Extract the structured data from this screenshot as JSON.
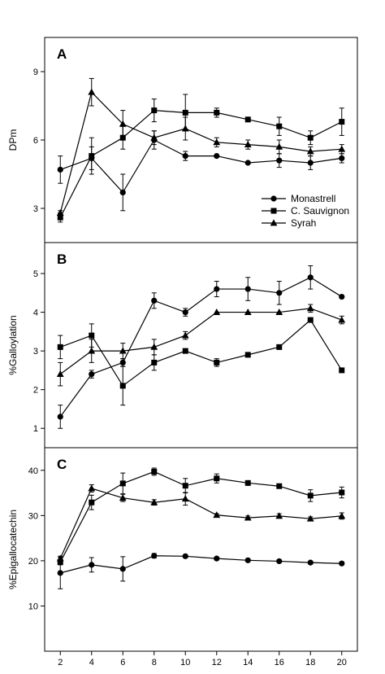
{
  "chart_data": [
    {
      "type": "line",
      "panel_label": "A",
      "ylabel": "DPm",
      "x": [
        2,
        4,
        6,
        8,
        10,
        12,
        14,
        16,
        18,
        20
      ],
      "ylim": [
        1.5,
        10.5
      ],
      "yticks": [
        3,
        6,
        9
      ],
      "legend_position": "bottom-right",
      "series": [
        {
          "name": "Monastrell",
          "marker": "circle",
          "values": [
            4.7,
            5.2,
            3.7,
            6.0,
            5.3,
            5.3,
            5.0,
            5.1,
            5.0,
            5.2
          ],
          "errors": [
            0.6,
            0.5,
            0.8,
            0.4,
            0.2,
            0.0,
            0.0,
            0.3,
            0.3,
            0.2
          ]
        },
        {
          "name": "C. Sauvignon",
          "marker": "square",
          "values": [
            2.6,
            5.3,
            6.1,
            7.3,
            7.2,
            7.2,
            6.9,
            6.6,
            6.1,
            6.8
          ],
          "errors": [
            0.2,
            0.8,
            0.5,
            0.5,
            0.8,
            0.2,
            0.1,
            0.4,
            0.3,
            0.6
          ]
        },
        {
          "name": "Syrah",
          "marker": "triangle",
          "values": [
            2.8,
            8.1,
            6.7,
            6.1,
            6.5,
            5.9,
            5.8,
            5.7,
            5.5,
            5.6
          ],
          "errors": [
            0.1,
            0.6,
            0.6,
            0.3,
            0.5,
            0.2,
            0.2,
            0.3,
            0.2,
            0.2
          ]
        }
      ]
    },
    {
      "type": "line",
      "panel_label": "B",
      "ylabel": "%Galloylation",
      "x": [
        2,
        4,
        6,
        8,
        10,
        12,
        14,
        16,
        18,
        20
      ],
      "ylim": [
        0.5,
        5.8
      ],
      "yticks": [
        1,
        2,
        3,
        4,
        5
      ],
      "series": [
        {
          "name": "Monastrell",
          "marker": "circle",
          "values": [
            1.3,
            2.4,
            2.7,
            4.3,
            4.0,
            4.6,
            4.6,
            4.5,
            4.9,
            4.4
          ],
          "errors": [
            0.3,
            0.1,
            0.1,
            0.2,
            0.1,
            0.2,
            0.3,
            0.3,
            0.3,
            0.0
          ]
        },
        {
          "name": "C. Sauvignon",
          "marker": "square",
          "values": [
            3.1,
            3.4,
            2.1,
            2.7,
            3.0,
            2.7,
            2.9,
            3.1,
            3.8,
            2.5
          ],
          "errors": [
            0.3,
            0.3,
            0.5,
            0.2,
            0.0,
            0.1,
            0.0,
            0.0,
            0.0,
            0.0
          ]
        },
        {
          "name": "Syrah",
          "marker": "triangle",
          "values": [
            2.4,
            3.0,
            3.0,
            3.1,
            3.4,
            4.0,
            4.0,
            4.0,
            4.1,
            3.8
          ],
          "errors": [
            0.3,
            0.3,
            0.2,
            0.2,
            0.1,
            0.0,
            0.0,
            0.0,
            0.1,
            0.1
          ]
        }
      ]
    },
    {
      "type": "line",
      "panel_label": "C",
      "ylabel": "%Epigallocatechin",
      "x": [
        2,
        4,
        6,
        8,
        10,
        12,
        14,
        16,
        18,
        20
      ],
      "ylim": [
        0,
        45
      ],
      "yticks": [
        10,
        20,
        30,
        40
      ],
      "series": [
        {
          "name": "Monastrell",
          "marker": "circle",
          "values": [
            17.3,
            19.1,
            18.2,
            21.1,
            21.0,
            20.5,
            20.1,
            19.9,
            19.6,
            19.4
          ],
          "errors": [
            3.5,
            1.6,
            2.7,
            0.5,
            0.3,
            0.3,
            0.3,
            0.3,
            0.3,
            0.3
          ]
        },
        {
          "name": "C. Sauvignon",
          "marker": "square",
          "values": [
            19.7,
            32.9,
            37.1,
            39.7,
            36.6,
            38.2,
            37.2,
            36.5,
            34.4,
            35.1
          ],
          "errors": [
            0.6,
            1.6,
            2.3,
            0.8,
            1.6,
            1.0,
            0.5,
            0.4,
            1.3,
            1.2
          ]
        },
        {
          "name": "Syrah",
          "marker": "triangle",
          "values": [
            20.5,
            36.0,
            33.9,
            32.9,
            33.7,
            30.1,
            29.5,
            29.9,
            29.3,
            29.9
          ],
          "errors": [
            0.5,
            0.8,
            0.8,
            0.6,
            1.4,
            0.3,
            0.4,
            0.5,
            0.4,
            0.7
          ]
        }
      ]
    }
  ],
  "xticks": [
    2,
    4,
    6,
    8,
    10,
    12,
    14,
    16,
    18,
    20
  ],
  "xlim": [
    1,
    21
  ]
}
